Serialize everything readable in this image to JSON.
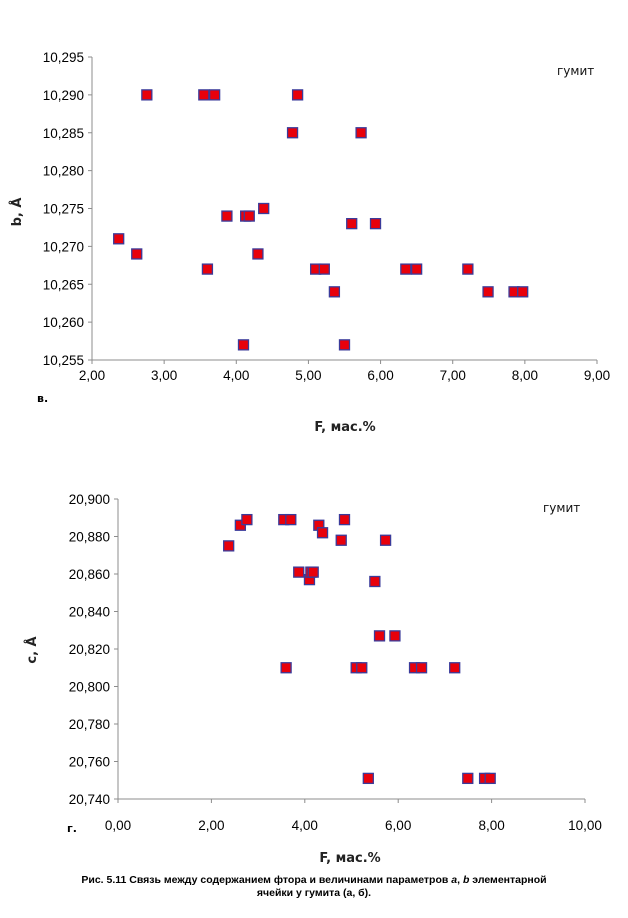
{
  "chart_data": [
    {
      "type": "scatter",
      "panel_letter": "в.",
      "legend_label": "гумит",
      "xlabel": "F, мас.%",
      "ylabel": "b, Å",
      "xlim": [
        2,
        9
      ],
      "ylim": [
        10.255,
        10.295
      ],
      "x_ticks": [
        "2,00",
        "3,00",
        "4,00",
        "5,00",
        "6,00",
        "7,00",
        "8,00",
        "9,00"
      ],
      "y_ticks": [
        "10,255",
        "10,260",
        "10,265",
        "10,270",
        "10,275",
        "10,280",
        "10,285",
        "10,290",
        "10,295"
      ],
      "grid": false,
      "marker_color": "#e8000b",
      "marker_edge": "#3b3b9a",
      "points": [
        [
          2.37,
          10.271
        ],
        [
          2.62,
          10.269
        ],
        [
          2.76,
          10.29
        ],
        [
          3.55,
          10.29
        ],
        [
          3.7,
          10.29
        ],
        [
          3.6,
          10.267
        ],
        [
          3.87,
          10.274
        ],
        [
          4.13,
          10.274
        ],
        [
          4.18,
          10.274
        ],
        [
          4.38,
          10.275
        ],
        [
          4.1,
          10.257
        ],
        [
          4.3,
          10.269
        ],
        [
          4.78,
          10.285
        ],
        [
          4.85,
          10.29
        ],
        [
          5.1,
          10.267
        ],
        [
          5.22,
          10.267
        ],
        [
          5.36,
          10.264
        ],
        [
          5.6,
          10.273
        ],
        [
          5.73,
          10.285
        ],
        [
          5.5,
          10.257
        ],
        [
          5.93,
          10.273
        ],
        [
          6.35,
          10.267
        ],
        [
          6.5,
          10.267
        ],
        [
          7.21,
          10.267
        ],
        [
          7.49,
          10.264
        ],
        [
          7.85,
          10.264
        ],
        [
          7.97,
          10.264
        ]
      ]
    },
    {
      "type": "scatter",
      "panel_letter": "г.",
      "legend_label": "гумит",
      "xlabel": "F,  мас.%",
      "ylabel": "c, Å",
      "xlim": [
        0,
        10
      ],
      "ylim": [
        20.74,
        20.9
      ],
      "x_ticks": [
        "0,00",
        "2,00",
        "4,00",
        "6,00",
        "8,00",
        "10,00"
      ],
      "y_ticks": [
        "20,740",
        "20,760",
        "20,780",
        "20,800",
        "20,820",
        "20,840",
        "20,860",
        "20,880",
        "20,900"
      ],
      "grid": false,
      "marker_color": "#e8000b",
      "marker_edge": "#3b3b9a",
      "points": [
        [
          2.37,
          20.875
        ],
        [
          2.62,
          20.886
        ],
        [
          2.76,
          20.889
        ],
        [
          3.55,
          20.889
        ],
        [
          3.7,
          20.889
        ],
        [
          3.6,
          20.81
        ],
        [
          3.87,
          20.861
        ],
        [
          4.1,
          20.857
        ],
        [
          4.13,
          20.861
        ],
        [
          4.18,
          20.861
        ],
        [
          4.3,
          20.886
        ],
        [
          4.38,
          20.882
        ],
        [
          4.78,
          20.878
        ],
        [
          4.85,
          20.889
        ],
        [
          5.1,
          20.81
        ],
        [
          5.22,
          20.81
        ],
        [
          5.36,
          20.751
        ],
        [
          5.5,
          20.856
        ],
        [
          5.6,
          20.827
        ],
        [
          5.73,
          20.878
        ],
        [
          5.93,
          20.827
        ],
        [
          6.35,
          20.81
        ],
        [
          6.5,
          20.81
        ],
        [
          7.21,
          20.81
        ],
        [
          7.49,
          20.751
        ],
        [
          7.85,
          20.751
        ],
        [
          7.97,
          20.751
        ]
      ]
    }
  ],
  "caption": {
    "line1_before_a": "Рис. 5.11 Связь между содержанием фтора  и величинами  параметров  ",
    "param_a": "a",
    "sep": ", ",
    "param_b": "b",
    "line1_after_b": " элементарной",
    "line2": "ячейки у гумита (а, б)."
  }
}
